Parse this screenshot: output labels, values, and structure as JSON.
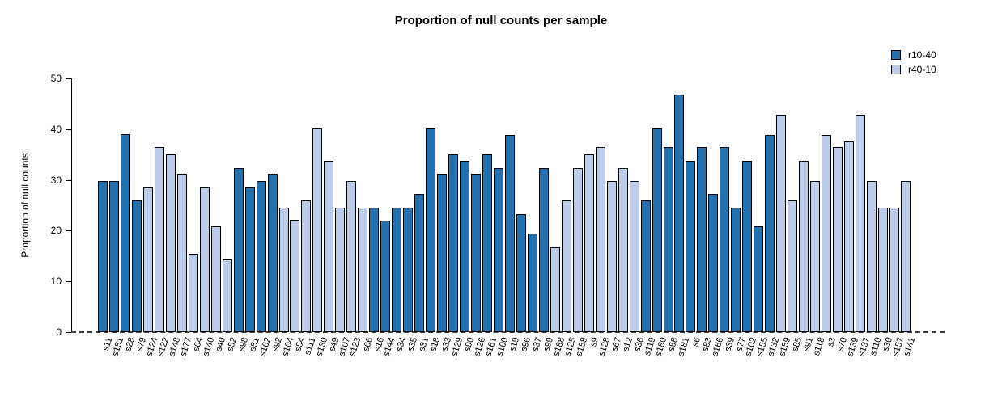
{
  "chart_data": {
    "type": "bar",
    "title": "Proportion of null counts per sample",
    "xlabel": "",
    "ylabel": "Proportion of null counts",
    "ylim": [
      0,
      50
    ],
    "yticks": [
      0,
      10,
      20,
      30,
      40,
      50
    ],
    "grid": false,
    "zero_line_style": "dashed",
    "legend_position": "top-right",
    "groups": [
      {
        "name": "r10-40",
        "color": "#2272b2"
      },
      {
        "name": "r40-10",
        "color": "#bccde9"
      }
    ],
    "bars": [
      {
        "sample": "s11",
        "value": 29.8,
        "group": "r10-40"
      },
      {
        "sample": "s151",
        "value": 29.8,
        "group": "r10-40"
      },
      {
        "sample": "s28",
        "value": 39.0,
        "group": "r10-40"
      },
      {
        "sample": "s79",
        "value": 25.9,
        "group": "r10-40"
      },
      {
        "sample": "s124",
        "value": 28.5,
        "group": "r40-10"
      },
      {
        "sample": "s122",
        "value": 36.4,
        "group": "r40-10"
      },
      {
        "sample": "s148",
        "value": 35.0,
        "group": "r40-10"
      },
      {
        "sample": "s177",
        "value": 31.2,
        "group": "r40-10"
      },
      {
        "sample": "s64",
        "value": 15.5,
        "group": "r40-10"
      },
      {
        "sample": "s140",
        "value": 28.5,
        "group": "r40-10"
      },
      {
        "sample": "s40",
        "value": 20.8,
        "group": "r40-10"
      },
      {
        "sample": "s52",
        "value": 14.3,
        "group": "r40-10"
      },
      {
        "sample": "s98",
        "value": 32.4,
        "group": "r10-40"
      },
      {
        "sample": "s51",
        "value": 28.5,
        "group": "r10-40"
      },
      {
        "sample": "s162",
        "value": 29.8,
        "group": "r10-40"
      },
      {
        "sample": "s92",
        "value": 31.2,
        "group": "r10-40"
      },
      {
        "sample": "s104",
        "value": 24.5,
        "group": "r40-10"
      },
      {
        "sample": "s54",
        "value": 22.1,
        "group": "r40-10"
      },
      {
        "sample": "s111",
        "value": 26.0,
        "group": "r40-10"
      },
      {
        "sample": "s130",
        "value": 40.2,
        "group": "r40-10"
      },
      {
        "sample": "s49",
        "value": 33.8,
        "group": "r40-10"
      },
      {
        "sample": "s107",
        "value": 24.5,
        "group": "r40-10"
      },
      {
        "sample": "s123",
        "value": 29.8,
        "group": "r40-10"
      },
      {
        "sample": "s66",
        "value": 24.5,
        "group": "r40-10"
      },
      {
        "sample": "s16",
        "value": 24.5,
        "group": "r10-40"
      },
      {
        "sample": "s144",
        "value": 22.0,
        "group": "r10-40"
      },
      {
        "sample": "s34",
        "value": 24.5,
        "group": "r10-40"
      },
      {
        "sample": "s35",
        "value": 24.5,
        "group": "r10-40"
      },
      {
        "sample": "s31",
        "value": 27.3,
        "group": "r10-40"
      },
      {
        "sample": "s18",
        "value": 40.2,
        "group": "r10-40"
      },
      {
        "sample": "s33",
        "value": 31.2,
        "group": "r10-40"
      },
      {
        "sample": "s129",
        "value": 35.0,
        "group": "r10-40"
      },
      {
        "sample": "s90",
        "value": 33.8,
        "group": "r10-40"
      },
      {
        "sample": "s126",
        "value": 31.2,
        "group": "r10-40"
      },
      {
        "sample": "s161",
        "value": 35.0,
        "group": "r10-40"
      },
      {
        "sample": "s100",
        "value": 32.4,
        "group": "r10-40"
      },
      {
        "sample": "s19",
        "value": 38.9,
        "group": "r10-40"
      },
      {
        "sample": "s96",
        "value": 23.3,
        "group": "r10-40"
      },
      {
        "sample": "s37",
        "value": 19.5,
        "group": "r10-40"
      },
      {
        "sample": "s99",
        "value": 32.4,
        "group": "r10-40"
      },
      {
        "sample": "s188",
        "value": 16.7,
        "group": "r40-10"
      },
      {
        "sample": "s125",
        "value": 26.0,
        "group": "r40-10"
      },
      {
        "sample": "s158",
        "value": 32.4,
        "group": "r40-10"
      },
      {
        "sample": "s9",
        "value": 35.0,
        "group": "r40-10"
      },
      {
        "sample": "s128",
        "value": 36.4,
        "group": "r40-10"
      },
      {
        "sample": "s67",
        "value": 29.8,
        "group": "r40-10"
      },
      {
        "sample": "s12",
        "value": 32.4,
        "group": "r40-10"
      },
      {
        "sample": "s36",
        "value": 29.8,
        "group": "r40-10"
      },
      {
        "sample": "s119",
        "value": 26.0,
        "group": "r10-40"
      },
      {
        "sample": "s180",
        "value": 40.2,
        "group": "r10-40"
      },
      {
        "sample": "s58",
        "value": 36.4,
        "group": "r10-40"
      },
      {
        "sample": "s181",
        "value": 46.8,
        "group": "r10-40"
      },
      {
        "sample": "s6",
        "value": 33.8,
        "group": "r10-40"
      },
      {
        "sample": "s83",
        "value": 36.4,
        "group": "r10-40"
      },
      {
        "sample": "s166",
        "value": 27.3,
        "group": "r10-40"
      },
      {
        "sample": "s39",
        "value": 36.4,
        "group": "r10-40"
      },
      {
        "sample": "s77",
        "value": 24.5,
        "group": "r10-40"
      },
      {
        "sample": "s102",
        "value": 33.8,
        "group": "r10-40"
      },
      {
        "sample": "s155",
        "value": 20.8,
        "group": "r10-40"
      },
      {
        "sample": "s132",
        "value": 38.9,
        "group": "r10-40"
      },
      {
        "sample": "s159",
        "value": 42.8,
        "group": "r40-10"
      },
      {
        "sample": "s85",
        "value": 26.0,
        "group": "r40-10"
      },
      {
        "sample": "s91",
        "value": 33.8,
        "group": "r40-10"
      },
      {
        "sample": "s118",
        "value": 29.8,
        "group": "r40-10"
      },
      {
        "sample": "s3",
        "value": 38.9,
        "group": "r40-10"
      },
      {
        "sample": "s70",
        "value": 36.4,
        "group": "r40-10"
      },
      {
        "sample": "s139",
        "value": 37.6,
        "group": "r40-10"
      },
      {
        "sample": "s137",
        "value": 42.8,
        "group": "r40-10"
      },
      {
        "sample": "s110",
        "value": 29.8,
        "group": "r40-10"
      },
      {
        "sample": "s30",
        "value": 24.5,
        "group": "r40-10"
      },
      {
        "sample": "s157",
        "value": 24.5,
        "group": "r40-10"
      },
      {
        "sample": "s141",
        "value": 29.8,
        "group": "r40-10"
      }
    ]
  }
}
